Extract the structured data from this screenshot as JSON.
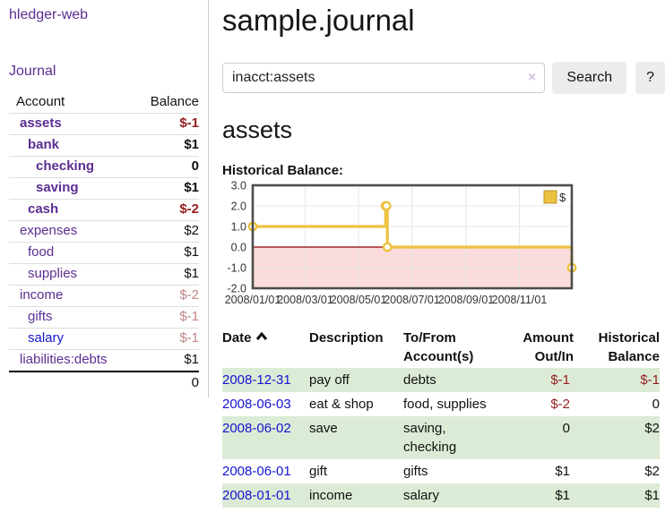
{
  "colors": {
    "accent_purple": "#5b2d91",
    "link_blue": "#1414d2",
    "negative_red": "#941d1d",
    "negative_dim": "#c08585",
    "row_green": "#dcebd5",
    "button_gray": "#ececec",
    "border_gray": "#cccccc",
    "chart_gold": "#edc240"
  },
  "sidebar": {
    "app_title": "hledger-web",
    "nav_journal": "Journal",
    "table": {
      "headers": {
        "account": "Account",
        "balance": "Balance"
      },
      "accounts": [
        {
          "name": "assets",
          "indent": 1,
          "bold": true,
          "balance": "$-1",
          "balance_style": "neg"
        },
        {
          "name": "bank",
          "indent": 2,
          "bold": true,
          "balance": "$1",
          "balance_style": "pos"
        },
        {
          "name": "checking",
          "indent": 3,
          "bold": true,
          "balance": "0",
          "balance_style": "pos"
        },
        {
          "name": "saving",
          "indent": 3,
          "bold": true,
          "balance": "$1",
          "balance_style": "pos"
        },
        {
          "name": "cash",
          "indent": 2,
          "bold": true,
          "balance": "$-2",
          "balance_style": "neg"
        },
        {
          "name": "expenses",
          "indent": 1,
          "bold": false,
          "balance": "$2",
          "balance_style": "pos"
        },
        {
          "name": "food",
          "indent": 2,
          "bold": false,
          "balance": "$1",
          "balance_style": "pos"
        },
        {
          "name": "supplies",
          "indent": 2,
          "bold": false,
          "balance": "$1",
          "balance_style": "pos"
        },
        {
          "name": "income",
          "indent": 1,
          "bold": false,
          "balance": "$-2",
          "balance_style": "neg-dim"
        },
        {
          "name": "gifts",
          "indent": 2,
          "bold": false,
          "balance": "$-1",
          "balance_style": "neg-dim"
        },
        {
          "name": "salary",
          "indent": 2,
          "bold": false,
          "balance": "$-1",
          "balance_style": "neg-dim",
          "link_color": "blue"
        },
        {
          "name": "liabilities:debts",
          "indent": 1,
          "bold": false,
          "balance": "$1",
          "balance_style": "pos"
        }
      ],
      "total": "0"
    }
  },
  "header": {
    "title": "sample.journal"
  },
  "search": {
    "query": "inacct:assets",
    "clear_icon": "×",
    "search_button": "Search",
    "help_button": "?"
  },
  "account_page": {
    "heading": "assets",
    "chart_title": "Historical Balance:"
  },
  "chart_data": {
    "type": "line",
    "step": true,
    "legend_label": "$",
    "legend_position": "top-right",
    "grid": true,
    "ylim": [
      -2.0,
      3.0
    ],
    "y_ticks": [
      3.0,
      2.0,
      1.0,
      0.0,
      -1.0,
      -2.0
    ],
    "x_domain_days": [
      0,
      365
    ],
    "x_ticks": [
      {
        "label": "2008/01/01",
        "day": 0
      },
      {
        "label": "2008/03/01",
        "day": 60
      },
      {
        "label": "2008/05/01",
        "day": 121
      },
      {
        "label": "2008/07/01",
        "day": 182
      },
      {
        "label": "2008/09/01",
        "day": 244
      },
      {
        "label": "2008/11/01",
        "day": 305
      }
    ],
    "points": [
      {
        "date": "2008-01-01",
        "day": 0,
        "value": 1
      },
      {
        "date": "2008-06-01",
        "day": 152,
        "value": 2
      },
      {
        "date": "2008-06-02",
        "day": 153,
        "value": 2
      },
      {
        "date": "2008-06-03",
        "day": 154,
        "value": 0
      },
      {
        "date": "2008-12-31",
        "day": 365,
        "value": -1
      }
    ],
    "line_color": "#edc240",
    "negative_region_color": "#fbdcdc",
    "zero_line_color": "#8b0000"
  },
  "transactions": {
    "headers": {
      "date": "Date",
      "sort_icon": "chevron-up",
      "description": "Description",
      "tofrom": "To/From Account(s)",
      "amount": "Amount Out/In",
      "balance": "Historical Balance"
    },
    "rows": [
      {
        "date": "2008-12-31",
        "description": "pay off",
        "accounts": "debts",
        "amount": "$-1",
        "amount_neg": true,
        "balance": "$-1",
        "balance_neg": true
      },
      {
        "date": "2008-06-03",
        "description": "eat & shop",
        "accounts": "food, supplies",
        "amount": "$-2",
        "amount_neg": true,
        "balance": "0",
        "balance_neg": false
      },
      {
        "date": "2008-06-02",
        "description": "save",
        "accounts": "saving, checking",
        "amount": "0",
        "amount_neg": false,
        "balance": "$2",
        "balance_neg": false
      },
      {
        "date": "2008-06-01",
        "description": "gift",
        "accounts": "gifts",
        "amount": "$1",
        "amount_neg": false,
        "balance": "$2",
        "balance_neg": false
      },
      {
        "date": "2008-01-01",
        "description": "income",
        "accounts": "salary",
        "amount": "$1",
        "amount_neg": false,
        "balance": "$1",
        "balance_neg": false
      }
    ]
  }
}
